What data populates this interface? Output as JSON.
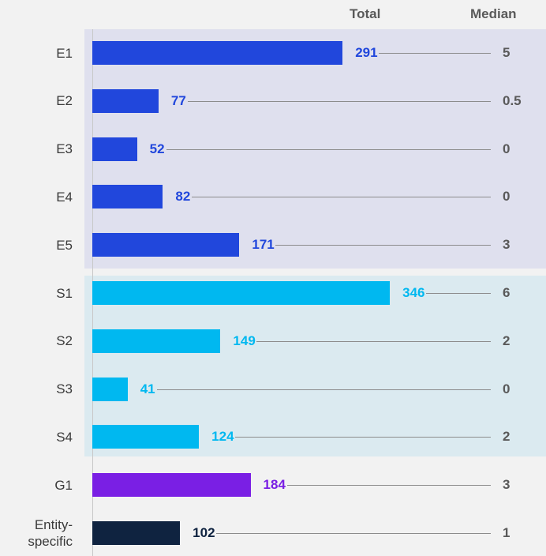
{
  "chart_data": {
    "type": "bar",
    "orientation": "horizontal",
    "categories": [
      "E1",
      "E2",
      "E3",
      "E4",
      "E5",
      "S1",
      "S2",
      "S3",
      "S4",
      "G1",
      "Entity-specific"
    ],
    "series": [
      {
        "name": "Total",
        "values": [
          291,
          77,
          52,
          82,
          171,
          346,
          149,
          41,
          124,
          184,
          102
        ]
      },
      {
        "name": "Median",
        "values": [
          5,
          0.5,
          0,
          0,
          3,
          6,
          2,
          0,
          2,
          3,
          1
        ]
      }
    ],
    "colors": [
      "#2147dc",
      "#2147dc",
      "#2147dc",
      "#2147dc",
      "#2147dc",
      "#00b8f0",
      "#00b8f0",
      "#00b8f0",
      "#00b8f0",
      "#7a1fe4",
      "#0f2340"
    ],
    "xlim": [
      0,
      500
    ]
  }
}
